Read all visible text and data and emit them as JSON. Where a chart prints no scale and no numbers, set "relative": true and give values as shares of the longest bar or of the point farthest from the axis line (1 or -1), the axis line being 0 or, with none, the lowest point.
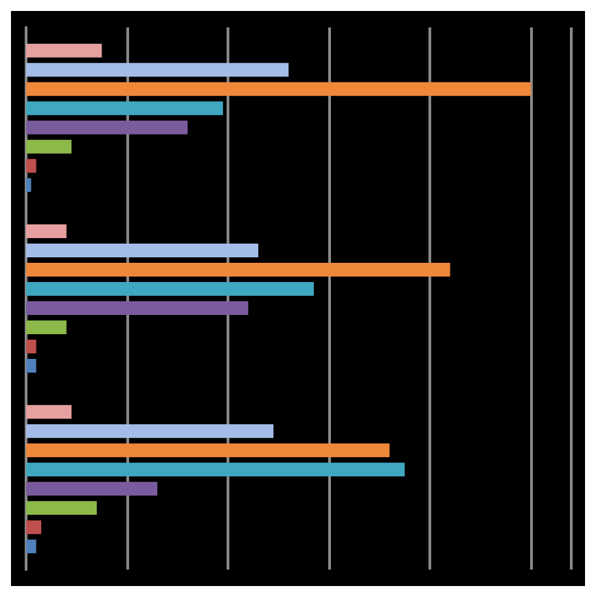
{
  "chart_data": {
    "type": "bar",
    "orientation": "horizontal",
    "relative": true,
    "grid": "x",
    "categories": [
      null,
      null,
      null
    ],
    "series": [
      {
        "color": "#e6a0a0",
        "values": [
          0.15,
          0.08,
          0.09
        ]
      },
      {
        "color": "#a4bde8",
        "values": [
          0.52,
          0.46,
          0.49
        ]
      },
      {
        "color": "#f0883a",
        "values": [
          1,
          0.84,
          0.72
        ]
      },
      {
        "color": "#3fa8c0",
        "values": [
          0.39,
          0.57,
          0.75
        ]
      },
      {
        "color": "#7a5c9e",
        "values": [
          0.32,
          0.44,
          0.26
        ]
      },
      {
        "color": "#8db84a",
        "values": [
          0.09,
          0.08,
          0.14
        ]
      },
      {
        "color": "#c0504d",
        "values": [
          0.02,
          0.02,
          0.03
        ]
      },
      {
        "color": "#4f81bd",
        "values": [
          0.01,
          0.02,
          0.02
        ]
      }
    ]
  }
}
